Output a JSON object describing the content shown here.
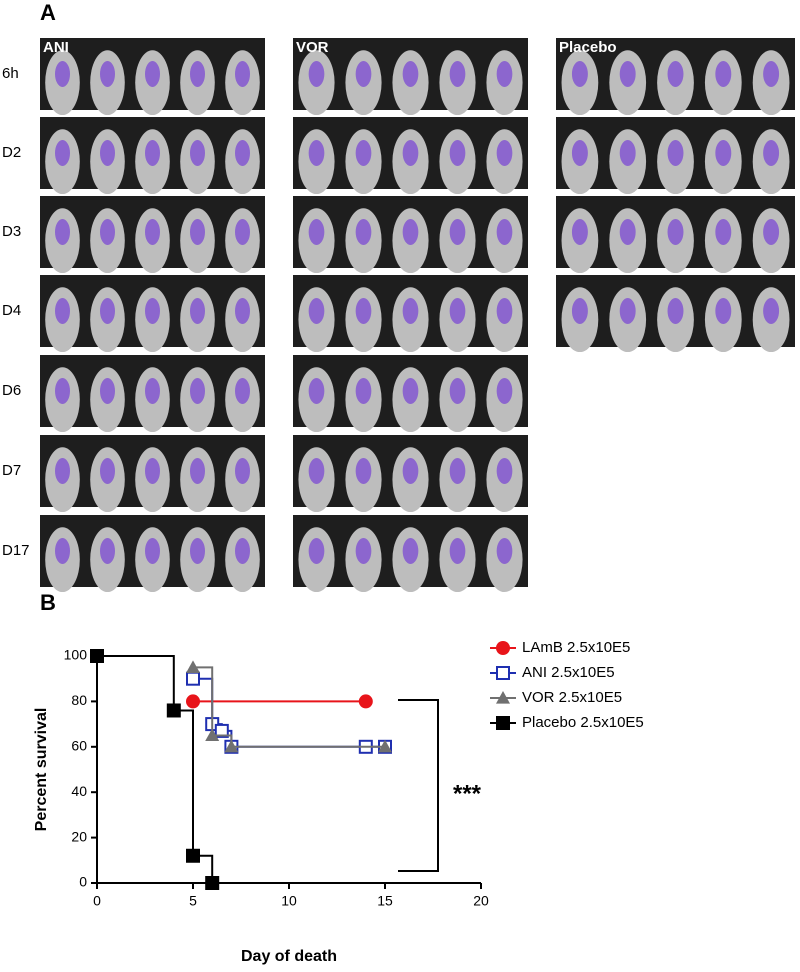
{
  "panel_a": {
    "label": "A",
    "groups": [
      "ANI",
      "VOR",
      "Placebo"
    ],
    "rows": [
      "6h",
      "D2",
      "D3",
      "D4",
      "D6",
      "D7",
      "D17"
    ]
  },
  "panel_b_label": "B",
  "chart_data": {
    "type": "step",
    "x_label": "Day of death",
    "y_label": "Percent survival",
    "annotation": "***",
    "xlim": [
      0,
      20
    ],
    "xticks": [
      0,
      5,
      10,
      15,
      20
    ],
    "ylim": [
      0,
      100
    ],
    "yticks": [
      0,
      20,
      40,
      60,
      80,
      100
    ],
    "series": [
      {
        "name": "LAmB 2.5x10E5",
        "color": "#e8141a",
        "marker": "circle",
        "x": [
          5,
          14
        ],
        "values": [
          80,
          80
        ]
      },
      {
        "name": "ANI 2.5x10E5",
        "color": "#1f2fb0",
        "marker": "open-square",
        "x": [
          5,
          6,
          6.5,
          7,
          14,
          15
        ],
        "values": [
          90,
          70,
          67,
          60,
          60,
          60
        ]
      },
      {
        "name": "VOR 2.5x10E5",
        "color": "#707070",
        "marker": "triangle",
        "x": [
          5,
          6,
          7,
          15
        ],
        "values": [
          95,
          65,
          60,
          60
        ]
      },
      {
        "name": "Placebo 2.5x10E5",
        "color": "#000000",
        "marker": "square",
        "x": [
          0,
          4,
          5,
          6
        ],
        "values": [
          100,
          76,
          12,
          0
        ]
      }
    ]
  }
}
